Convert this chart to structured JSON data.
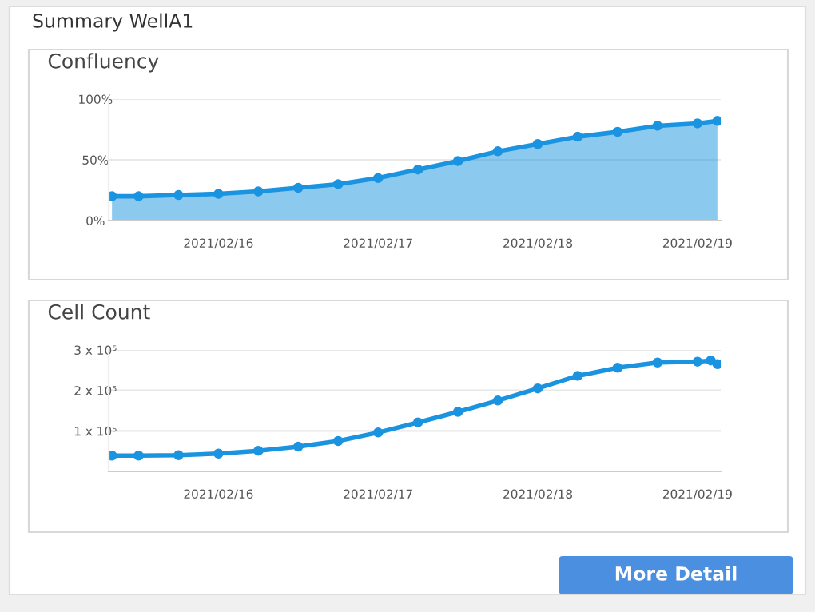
{
  "chart_data": [
    {
      "type": "area",
      "title": "Confluency",
      "annotations": [
        "Summary WellA1"
      ],
      "x": [
        "2021-02-15T08:00",
        "2021-02-15T12:00",
        "2021-02-15T18:00",
        "2021-02-16T00:00",
        "2021-02-16T06:00",
        "2021-02-16T12:00",
        "2021-02-16T18:00",
        "2021-02-17T00:00",
        "2021-02-17T06:00",
        "2021-02-17T12:00",
        "2021-02-17T18:00",
        "2021-02-18T00:00",
        "2021-02-18T06:00",
        "2021-02-18T12:00",
        "2021-02-18T18:00",
        "2021-02-19T00:00",
        "2021-02-19T03:00"
      ],
      "xlim": [
        "2021-02-15T07:30",
        "2021-02-19T03:30"
      ],
      "series": [
        {
          "color": "#1a94e0",
          "values": [
            20,
            20,
            21,
            22,
            24,
            27,
            30,
            35,
            42,
            49,
            57,
            63,
            69,
            73,
            78,
            80,
            82
          ]
        }
      ],
      "ylim": [
        0,
        100
      ],
      "yticks": [
        {
          "value": 0,
          "label": "0%"
        },
        {
          "value": 50,
          "label": "50%"
        },
        {
          "value": 100,
          "label": "100%"
        }
      ],
      "xticks": [
        {
          "value": "2021-02-16",
          "label": "2021/02/16"
        },
        {
          "value": "2021-02-17",
          "label": "2021/02/17"
        },
        {
          "value": "2021-02-18",
          "label": "2021/02/18"
        },
        {
          "value": "2021-02-19",
          "label": "2021/02/19"
        }
      ],
      "grid": "y",
      "marker": "circle"
    },
    {
      "type": "line",
      "title": "Cell Count",
      "annotations": [
        "More Detail"
      ],
      "x": [
        "2021-02-15T08:00",
        "2021-02-15T12:00",
        "2021-02-15T18:00",
        "2021-02-16T00:00",
        "2021-02-16T06:00",
        "2021-02-16T12:00",
        "2021-02-16T18:00",
        "2021-02-17T00:00",
        "2021-02-17T06:00",
        "2021-02-17T12:00",
        "2021-02-17T18:00",
        "2021-02-18T00:00",
        "2021-02-18T06:00",
        "2021-02-18T12:00",
        "2021-02-18T18:00",
        "2021-02-19T00:00",
        "2021-02-19T02:00",
        "2021-02-19T03:00"
      ],
      "xlim": [
        "2021-02-15T07:30",
        "2021-02-19T03:30"
      ],
      "series": [
        {
          "color": "#1a94e0",
          "values": [
            39000,
            39000,
            40000,
            44000,
            51000,
            61000,
            75000,
            96000,
            121000,
            147000,
            175000,
            205000,
            236000,
            256000,
            269000,
            271000,
            274000,
            265000
          ]
        }
      ],
      "ylim": [
        0,
        300000
      ],
      "yticks": [
        {
          "value": 100000,
          "label": "1 x 10⁵"
        },
        {
          "value": 200000,
          "label": "2 x 10⁵"
        },
        {
          "value": 300000,
          "label": "3 x 10⁵"
        }
      ],
      "xticks": [
        {
          "value": "2021-02-16",
          "label": "2021/02/16"
        },
        {
          "value": "2021-02-17",
          "label": "2021/02/17"
        },
        {
          "value": "2021-02-18",
          "label": "2021/02/18"
        },
        {
          "value": "2021-02-19",
          "label": "2021/02/19"
        }
      ],
      "grid": "y",
      "marker": "circle"
    }
  ]
}
